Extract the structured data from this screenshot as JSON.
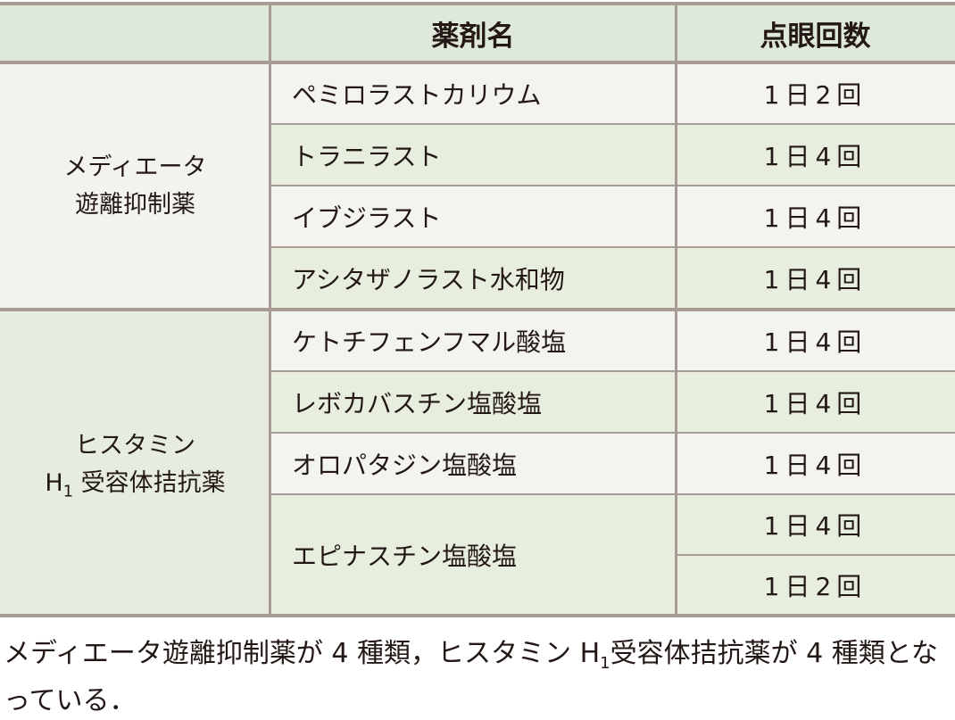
{
  "table": {
    "headers": [
      "",
      "薬剤名",
      "点眼回数"
    ],
    "groups": [
      {
        "label_line1": "メディエータ",
        "label_line2": "遊離抑制薬"
      },
      {
        "label_line1": "ヒスタミン",
        "label_line2_prefix": "H",
        "label_line2_sub": "1",
        "label_line2": "受容体拮抗薬"
      }
    ],
    "rows": [
      {
        "name": "ペミロラストカリウム",
        "freq": "1日2回"
      },
      {
        "name": "トラニラスト",
        "freq": "1日4回"
      },
      {
        "name": "イブジラスト",
        "freq": "1日4回"
      },
      {
        "name": "アシタザノラスト水和物",
        "freq": "1日4回"
      },
      {
        "name": "ケトチフェンフマル酸塩",
        "freq": "1日4回"
      },
      {
        "name": "レボカバスチン塩酸塩",
        "freq": "1日4回"
      },
      {
        "name": "オロパタジン塩酸塩",
        "freq": "1日4回"
      },
      {
        "name": "エピナスチン塩酸塩",
        "freq": "1日4回",
        "freq2": "1日2回"
      }
    ]
  },
  "caption": {
    "part1": "メディエータ遊離抑制薬が 4 種類，ヒスタミン H",
    "sub": "1",
    "part2": "受容体拮抗薬が 4 種類となっている．"
  },
  "colors": {
    "header_bg": "#dfe9d9",
    "border": "#a89a94",
    "row_light": "#f3f4ef",
    "row_green": "#e7eede"
  }
}
